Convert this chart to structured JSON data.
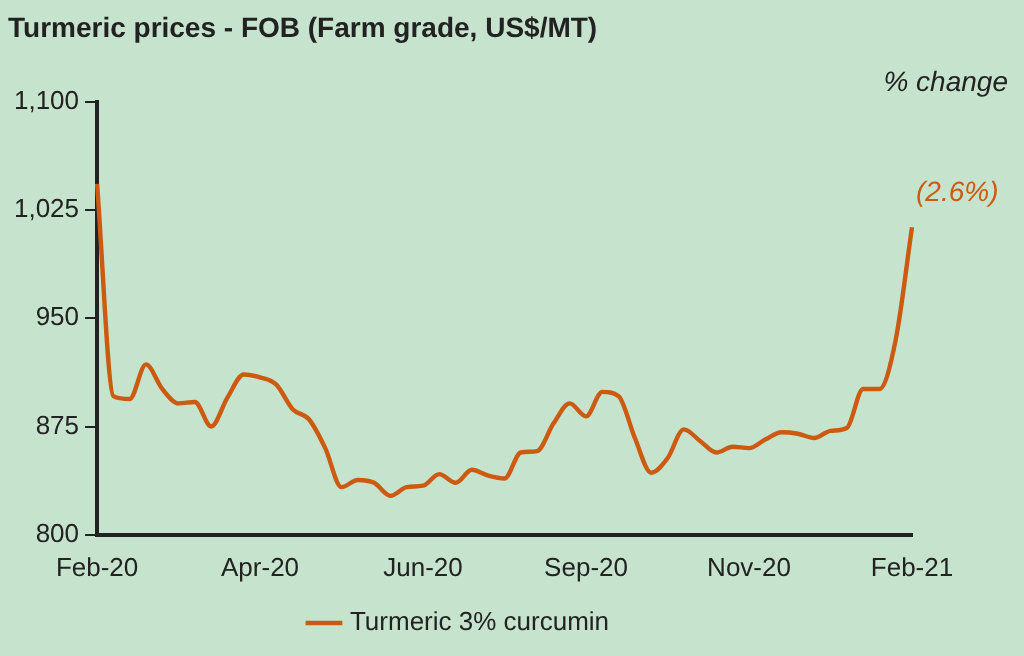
{
  "chart_data": {
    "type": "line",
    "title": "Turmeric prices - FOB (Farm grade, US$/MT)",
    "categories": [
      "Feb-20",
      null,
      null,
      null,
      null,
      null,
      null,
      null,
      null,
      null,
      "Apr-20",
      null,
      null,
      null,
      null,
      null,
      null,
      null,
      null,
      null,
      "Jun-20",
      null,
      null,
      null,
      null,
      null,
      null,
      null,
      null,
      null,
      "Sep-20",
      null,
      null,
      null,
      null,
      null,
      null,
      null,
      null,
      null,
      "Nov-20",
      null,
      null,
      null,
      null,
      null,
      null,
      null,
      null,
      null,
      "Feb-21"
    ],
    "series": [
      {
        "name": "Turmeric 3% curcumin",
        "color": "#cc5a10",
        "values": [
          1043,
          896,
          894,
          918,
          901,
          891,
          892,
          875,
          895,
          911,
          909,
          904,
          887,
          880,
          860,
          833,
          838,
          836,
          827,
          833,
          834,
          842,
          836,
          845,
          841,
          839,
          857,
          858,
          877,
          891,
          882,
          899,
          896,
          867,
          843,
          853,
          873,
          865,
          857,
          861,
          860,
          866,
          871,
          870,
          867,
          872,
          874,
          901,
          901,
          935,
          1013
        ]
      }
    ],
    "ylim": [
      800,
      1100
    ],
    "yticks": [
      800,
      875,
      950,
      {
        "value": 1025,
        "label": "1,025"
      },
      {
        "value": 1100,
        "label": "1,100"
      }
    ],
    "grid": false,
    "legend": "bottom",
    "marker": "none",
    "line_style": "solid",
    "annotations": [
      "% change",
      {
        "text": "(2.6%)",
        "x": "Feb-21",
        "y": 1013
      }
    ]
  }
}
